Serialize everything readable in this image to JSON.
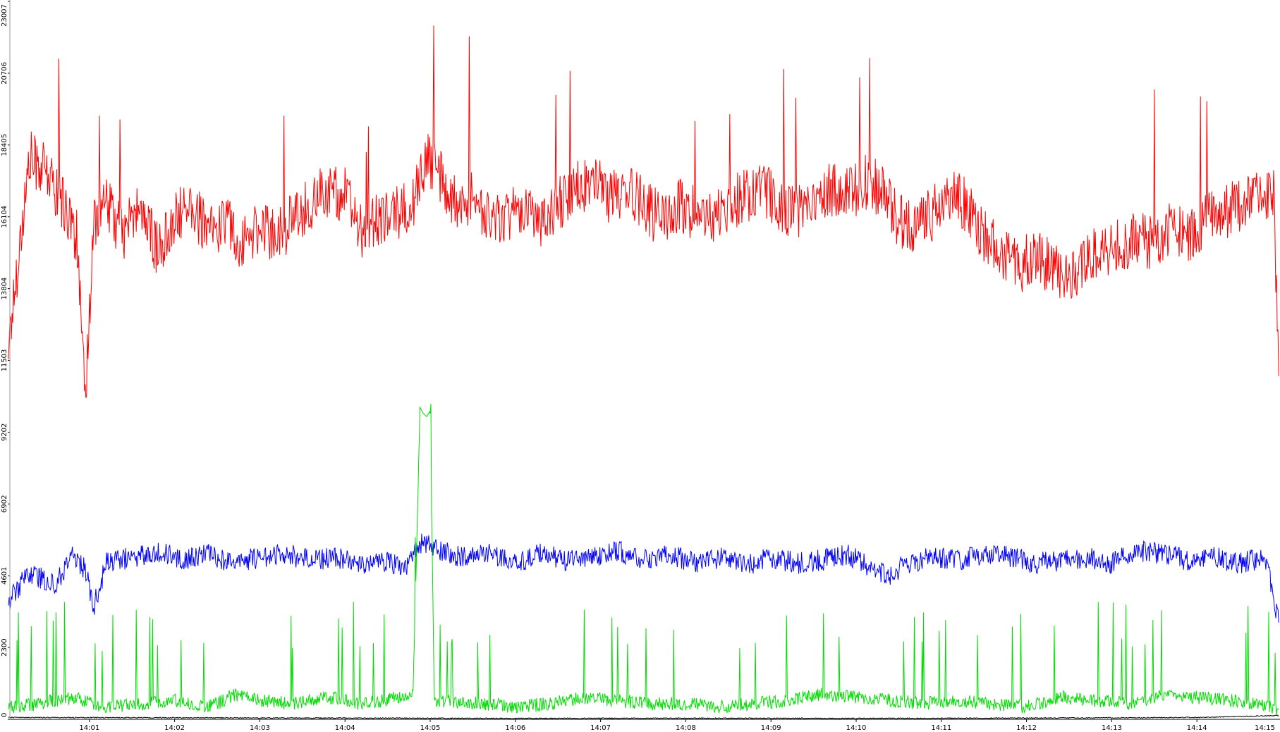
{
  "chart_data": {
    "type": "line",
    "title": "",
    "xlabel": "",
    "ylabel": "",
    "y_ticks": [
      0,
      2300,
      4601,
      6902,
      9202,
      11503,
      13804,
      16104,
      18405,
      20706,
      23007
    ],
    "ylim": [
      0,
      23007
    ],
    "x_ticks": [
      "14:01",
      "14:02",
      "14:03",
      "14:04",
      "14:05",
      "14:06",
      "14:07",
      "14:08",
      "14:09",
      "14:10",
      "14:11",
      "14:12",
      "14:13",
      "14:14",
      "14:15"
    ],
    "x_tick_positions_min": [
      1,
      2,
      3,
      4,
      5,
      6,
      7,
      8,
      9,
      10,
      11,
      12,
      13,
      14,
      15
    ],
    "xlim_min": [
      0.05,
      14.96
    ],
    "grid": false,
    "legend": "none",
    "series": [
      {
        "color": "#ff0000",
        "x_min": [
          0.05,
          0.3,
          0.5,
          0.7,
          0.85,
          0.95,
          1.05,
          1.2,
          1.4,
          1.6,
          1.8,
          2.0,
          2.2,
          2.4,
          2.6,
          2.8,
          3.0,
          3.2,
          3.4,
          3.6,
          3.8,
          4.0,
          4.2,
          4.4,
          4.6,
          4.8,
          4.95,
          5.1,
          5.3,
          5.5,
          5.7,
          5.9,
          6.1,
          6.3,
          6.5,
          6.7,
          6.9,
          7.1,
          7.3,
          7.5,
          7.7,
          7.9,
          8.1,
          8.3,
          8.5,
          8.7,
          8.9,
          9.1,
          9.3,
          9.5,
          9.7,
          9.9,
          10.1,
          10.3,
          10.5,
          10.7,
          10.9,
          11.1,
          11.3,
          11.5,
          11.7,
          11.9,
          12.1,
          12.3,
          12.5,
          12.7,
          12.9,
          13.1,
          13.3,
          13.5,
          13.7,
          13.9,
          14.1,
          14.3,
          14.5,
          14.7,
          14.9,
          14.96
        ],
        "y": [
          12000,
          18000,
          17500,
          16500,
          15500,
          10000,
          16000,
          16500,
          15500,
          16500,
          15000,
          16000,
          16500,
          15500,
          16000,
          15200,
          15800,
          15500,
          16000,
          16500,
          17000,
          16800,
          15500,
          16000,
          16200,
          16500,
          18000,
          17500,
          16500,
          16800,
          16000,
          16200,
          16500,
          16000,
          16500,
          17000,
          17200,
          16800,
          17000,
          16500,
          16000,
          16500,
          16200,
          16000,
          16500,
          16800,
          17000,
          16500,
          16200,
          16800,
          17000,
          16800,
          17200,
          17000,
          16000,
          15800,
          16200,
          16800,
          16500,
          15500,
          15000,
          14500,
          14800,
          14500,
          14000,
          14800,
          15000,
          15200,
          15500,
          15200,
          15800,
          15500,
          16000,
          16200,
          16500,
          16800,
          17000,
          11000
        ]
      },
      {
        "color": "#0000ff",
        "x_min": [
          0.05,
          0.3,
          0.6,
          0.8,
          0.95,
          1.05,
          1.2,
          1.5,
          1.8,
          2.1,
          2.4,
          2.7,
          3.0,
          3.3,
          3.6,
          3.9,
          4.2,
          4.5,
          4.7,
          4.9,
          5.1,
          5.4,
          5.7,
          6.0,
          6.3,
          6.6,
          6.9,
          7.2,
          7.5,
          7.8,
          8.1,
          8.4,
          8.7,
          9.0,
          9.3,
          9.6,
          9.9,
          10.2,
          10.4,
          10.6,
          10.9,
          11.2,
          11.5,
          11.8,
          12.1,
          12.4,
          12.7,
          13.0,
          13.3,
          13.6,
          13.9,
          14.2,
          14.5,
          14.8,
          14.96
        ],
        "y": [
          3800,
          4700,
          4300,
          5300,
          4800,
          3600,
          5000,
          5200,
          5400,
          5100,
          5300,
          5000,
          5200,
          5300,
          5100,
          5200,
          5000,
          5100,
          4800,
          5700,
          5400,
          5200,
          5300,
          5000,
          5300,
          5100,
          5200,
          5400,
          5100,
          5300,
          5000,
          5200,
          4900,
          5200,
          5000,
          5100,
          5300,
          4800,
          4600,
          5000,
          5200,
          5100,
          5300,
          5200,
          5000,
          5100,
          5200,
          5000,
          5400,
          5300,
          5100,
          5200,
          5000,
          5200,
          3100
        ]
      },
      {
        "color": "#00dd00",
        "x_min": [
          0.05,
          0.4,
          0.8,
          1.2,
          1.6,
          2.0,
          2.3,
          2.5,
          2.7,
          3.0,
          3.4,
          3.8,
          4.2,
          4.5,
          4.8,
          4.88,
          4.92,
          4.96,
          5.0,
          5.05,
          5.2,
          5.6,
          6.0,
          6.4,
          6.8,
          7.2,
          7.6,
          8.0,
          8.4,
          8.8,
          9.2,
          9.6,
          10.0,
          10.4,
          10.8,
          11.2,
          11.6,
          12.0,
          12.4,
          12.8,
          13.2,
          13.6,
          14.0,
          14.4,
          14.7,
          14.96
        ],
        "y": [
          400,
          500,
          700,
          400,
          500,
          600,
          400,
          500,
          800,
          600,
          500,
          700,
          500,
          600,
          900,
          10000,
          9800,
          9700,
          9900,
          500,
          600,
          500,
          400,
          500,
          700,
          600,
          500,
          500,
          400,
          500,
          600,
          800,
          700,
          600,
          500,
          600,
          500,
          400,
          700,
          600,
          500,
          800,
          700,
          600,
          500,
          350
        ]
      },
      {
        "color": "#000000",
        "x_min": [
          0.05,
          2.0,
          4.0,
          6.0,
          8.0,
          10.0,
          12.0,
          14.0,
          14.96
        ],
        "y": [
          60,
          50,
          40,
          30,
          35,
          30,
          40,
          60,
          120
        ]
      }
    ]
  }
}
